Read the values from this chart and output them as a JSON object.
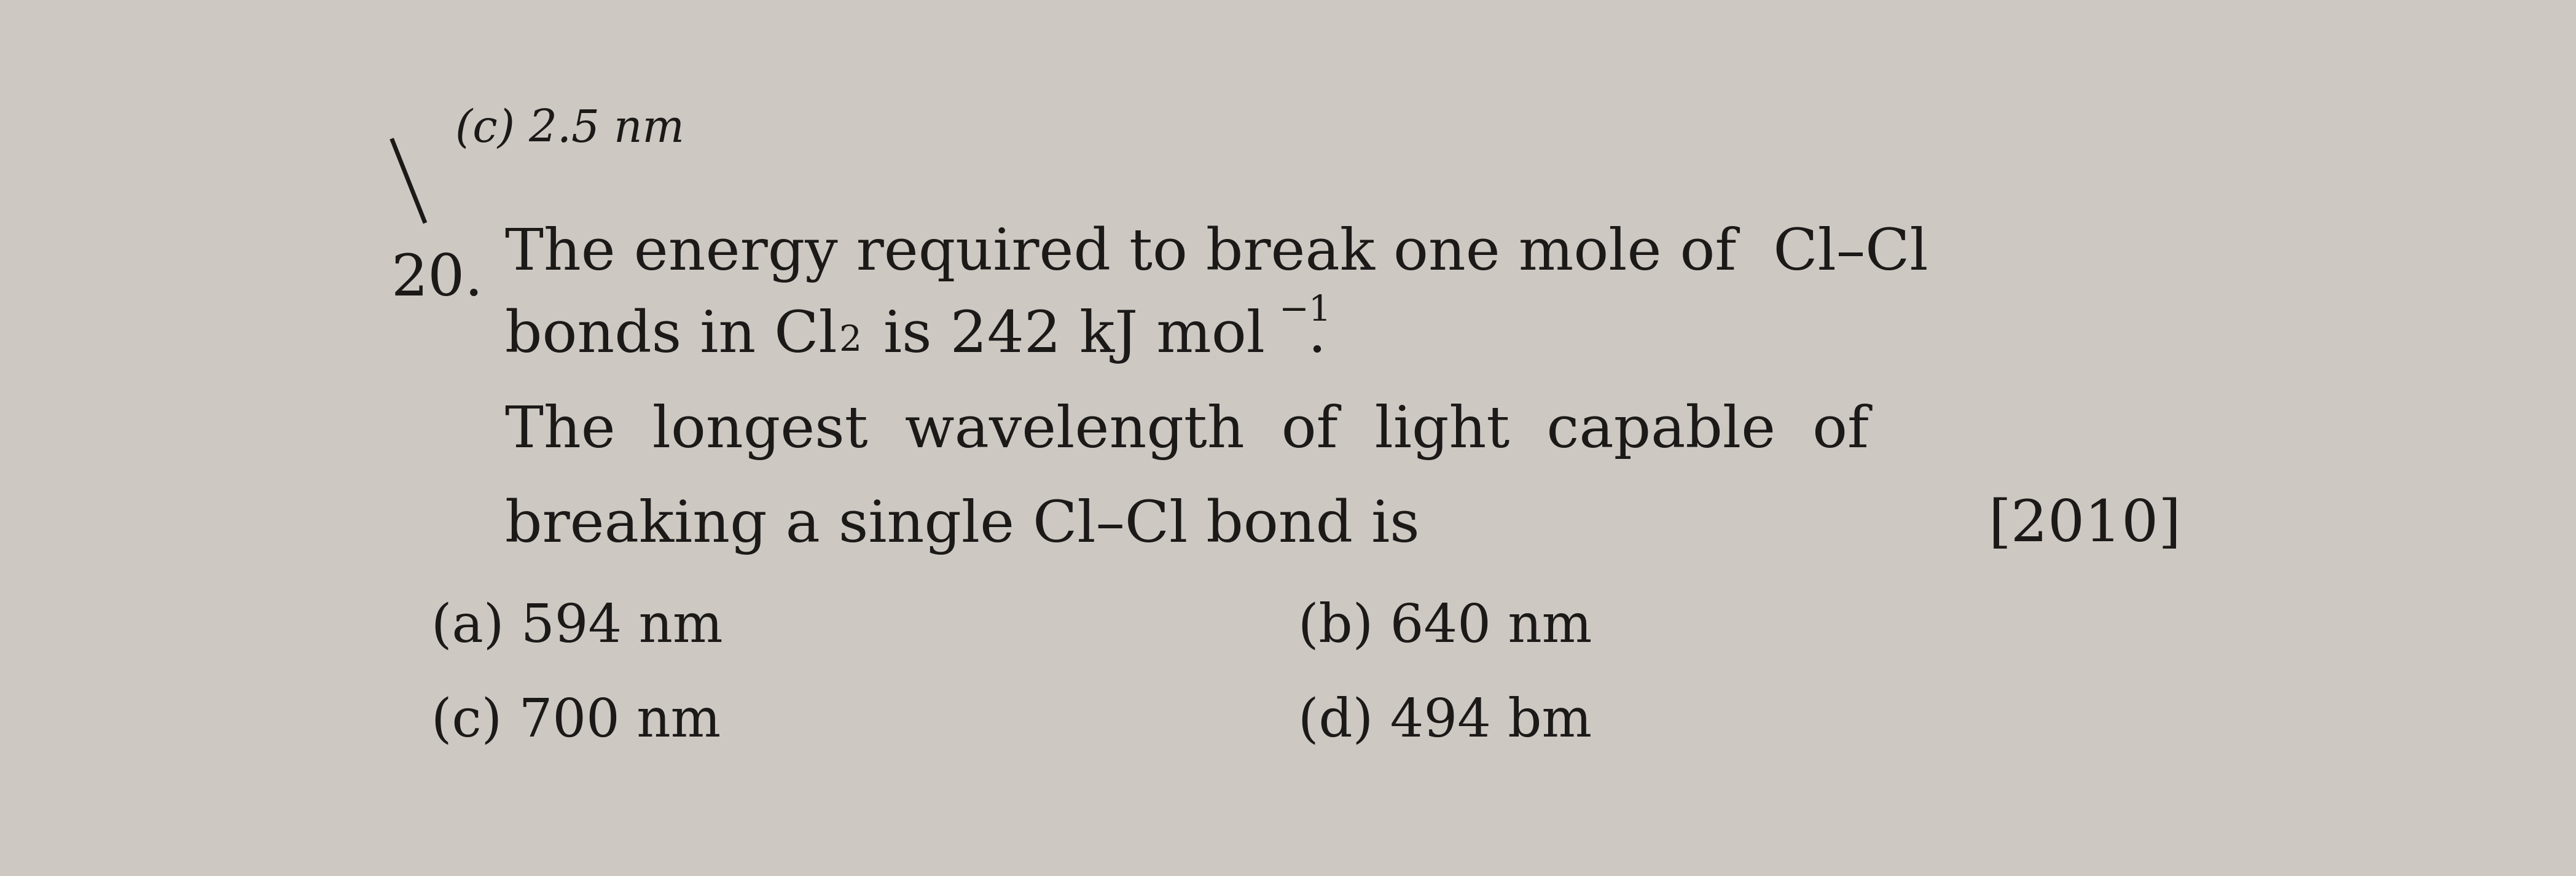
{
  "bg_color": "#cdc8c2",
  "text_color": "#1c1a18",
  "header_left": "(c) 2.5 nm",
  "q_num": "20.",
  "line1": "The energy required to break one mole of  Cl–Cl",
  "line2a": "bonds in Cl",
  "line2_sub": "2",
  "line2b": " is 242 kJ mol",
  "line2_sup": "−1",
  "line2c": ".",
  "line3": "The  longest  wavelength  of  light  capable  of",
  "line4a": "breaking a single Cl–Cl bond is",
  "line4b": "[2010]",
  "opt_a": "(a) 594 nm",
  "opt_b": "(b) 640 nm",
  "opt_c": "(c) 700 nm",
  "opt_d": "(d) 494 bm",
  "font_size_main": 68,
  "font_size_header": 52,
  "font_size_options": 62
}
